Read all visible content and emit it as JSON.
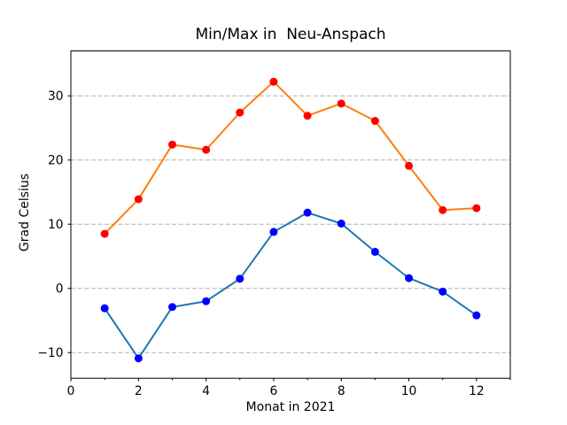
{
  "figure": {
    "background": "#ffffff"
  },
  "chart_data": {
    "type": "line",
    "title": "Min/Max in  Neu-Anspach",
    "xlabel": "Monat in 2021",
    "ylabel": "Grad Celsius",
    "x": [
      1,
      2,
      3,
      4,
      5,
      6,
      7,
      8,
      9,
      10,
      11,
      12
    ],
    "series": [
      {
        "name": "Max",
        "line_color": "#ff7f0e",
        "marker_color": "#ff0000",
        "values": [
          8.5,
          13.9,
          22.4,
          21.6,
          27.4,
          32.2,
          26.9,
          28.8,
          26.1,
          19.1,
          12.2,
          12.5
        ]
      },
      {
        "name": "Min",
        "line_color": "#1f77b4",
        "marker_color": "#0000ff",
        "values": [
          -3.1,
          -10.9,
          -2.9,
          -2.0,
          1.5,
          8.8,
          11.8,
          10.1,
          5.7,
          1.6,
          -0.5,
          -4.2
        ]
      }
    ],
    "xlim": [
      0,
      13
    ],
    "ylim": [
      -14,
      37
    ],
    "xticks": [
      0,
      2,
      4,
      6,
      8,
      10,
      12
    ],
    "xminorticks": [
      1,
      3,
      5,
      7,
      9,
      11,
      13
    ],
    "yticks": [
      -10,
      0,
      10,
      20,
      30
    ],
    "grid": {
      "axis": "y",
      "style": "dashed",
      "color": "#b0b0b0"
    },
    "axis_color": "#000000",
    "legend": "none",
    "marker_shape": "circle"
  }
}
